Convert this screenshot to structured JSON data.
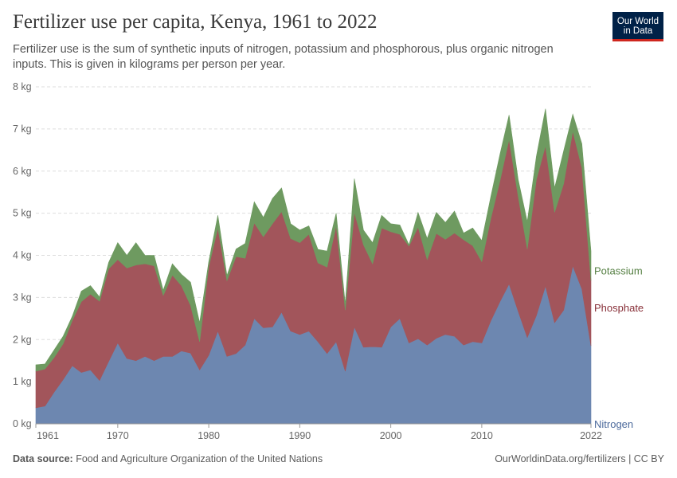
{
  "title": "Fertilizer use per capita, Kenya, 1961 to 2022",
  "subtitle": "Fertilizer use is the sum of synthetic inputs of nitrogen, potassium and phosphorous, plus organic nitrogen inputs. This is given in kilograms per person per year.",
  "logo": {
    "line1": "Our World",
    "line2": "in Data"
  },
  "footer": {
    "source_label": "Data source:",
    "source_text": "Food and Agriculture Organization of the United Nations",
    "url_license": "OurWorldinData.org/fertilizers | CC BY"
  },
  "colors": {
    "nitrogen": "#6d87b0",
    "phosphate": "#a2555b",
    "potassium": "#6e9a60",
    "nitrogen_label": "#4c6a9c",
    "phosphate_label": "#883039",
    "potassium_label": "#578145"
  },
  "chart_data": {
    "type": "area",
    "stacked": true,
    "x": [
      1961,
      1962,
      1963,
      1964,
      1965,
      1966,
      1967,
      1968,
      1969,
      1970,
      1971,
      1972,
      1973,
      1974,
      1975,
      1976,
      1977,
      1978,
      1979,
      1980,
      1981,
      1982,
      1983,
      1984,
      1985,
      1986,
      1987,
      1988,
      1989,
      1990,
      1991,
      1992,
      1993,
      1994,
      1995,
      1996,
      1997,
      1998,
      1999,
      2000,
      2001,
      2002,
      2003,
      2004,
      2005,
      2006,
      2007,
      2008,
      2009,
      2010,
      2011,
      2012,
      2013,
      2014,
      2015,
      2016,
      2017,
      2018,
      2019,
      2020,
      2021,
      2022
    ],
    "series": [
      {
        "name": "Nitrogen",
        "values": [
          0.38,
          0.42,
          0.75,
          1.05,
          1.38,
          1.22,
          1.28,
          1.03,
          1.48,
          1.92,
          1.55,
          1.5,
          1.6,
          1.5,
          1.6,
          1.6,
          1.73,
          1.68,
          1.28,
          1.63,
          2.2,
          1.6,
          1.67,
          1.87,
          2.5,
          2.28,
          2.3,
          2.65,
          2.2,
          2.12,
          2.2,
          1.95,
          1.67,
          1.95,
          1.25,
          2.3,
          1.82,
          1.83,
          1.82,
          2.3,
          2.5,
          1.92,
          2.02,
          1.87,
          2.03,
          2.12,
          2.08,
          1.87,
          1.95,
          1.92,
          2.45,
          2.9,
          3.32,
          2.67,
          2.05,
          2.57,
          3.27,
          2.4,
          2.7,
          3.75,
          3.2,
          1.85
        ]
      },
      {
        "name": "Phosphate",
        "values": [
          0.87,
          0.88,
          0.82,
          0.85,
          1.07,
          1.68,
          1.8,
          1.88,
          2.2,
          1.98,
          2.15,
          2.27,
          2.2,
          2.25,
          1.45,
          1.93,
          1.55,
          1.13,
          0.67,
          2.1,
          2.45,
          1.8,
          2.3,
          2.06,
          2.27,
          2.16,
          2.45,
          2.39,
          2.2,
          2.18,
          2.3,
          1.87,
          2.05,
          2.75,
          1.45,
          2.72,
          2.43,
          1.97,
          2.83,
          2.26,
          2.0,
          2.3,
          2.65,
          2.03,
          2.49,
          2.26,
          2.45,
          2.5,
          2.28,
          1.93,
          2.43,
          2.87,
          3.43,
          2.73,
          2.1,
          3.23,
          3.33,
          2.62,
          3.0,
          3.2,
          2.88,
          1.55
        ]
      },
      {
        "name": "Potassium",
        "values": [
          0.15,
          0.12,
          0.18,
          0.18,
          0.1,
          0.25,
          0.2,
          0.1,
          0.15,
          0.4,
          0.3,
          0.53,
          0.2,
          0.25,
          0.12,
          0.27,
          0.27,
          0.55,
          0.45,
          0.12,
          0.3,
          0.12,
          0.18,
          0.35,
          0.5,
          0.46,
          0.6,
          0.56,
          0.35,
          0.3,
          0.2,
          0.32,
          0.38,
          0.3,
          0.15,
          0.8,
          0.35,
          0.5,
          0.3,
          0.19,
          0.22,
          0.03,
          0.35,
          0.5,
          0.5,
          0.4,
          0.52,
          0.16,
          0.42,
          0.5,
          0.52,
          0.63,
          0.58,
          0.4,
          0.65,
          0.55,
          0.88,
          0.58,
          0.78,
          0.4,
          0.57,
          0.7
        ]
      }
    ],
    "ylim": [
      0,
      8
    ],
    "yticks": [
      0,
      1,
      2,
      3,
      4,
      5,
      6,
      7,
      8
    ],
    "ytick_labels": [
      "0 kg",
      "1 kg",
      "2 kg",
      "3 kg",
      "4 kg",
      "5 kg",
      "6 kg",
      "7 kg",
      "8 kg"
    ],
    "xticks": [
      1961,
      1970,
      1980,
      1990,
      2000,
      2010,
      2022
    ],
    "xtick_labels": [
      "1961",
      "1970",
      "1980",
      "1990",
      "2000",
      "2010",
      "2022"
    ],
    "xlim": [
      1961,
      2022
    ],
    "grid": "horizontal dashed",
    "legend": "right-inline"
  }
}
